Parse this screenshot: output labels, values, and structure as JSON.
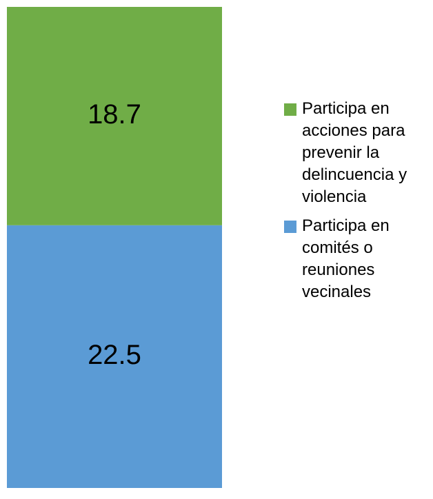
{
  "chart_data": {
    "type": "bar",
    "stacked": true,
    "series": [
      {
        "name": "Participa en comités o reuniones vecinales",
        "color": "#5b9bd5",
        "values": [
          22.5
        ]
      },
      {
        "name": "Participa en acciones para prevenir la delincuencia y violencia",
        "color": "#70ad47",
        "values": [
          18.7
        ]
      }
    ],
    "legend": "right"
  }
}
